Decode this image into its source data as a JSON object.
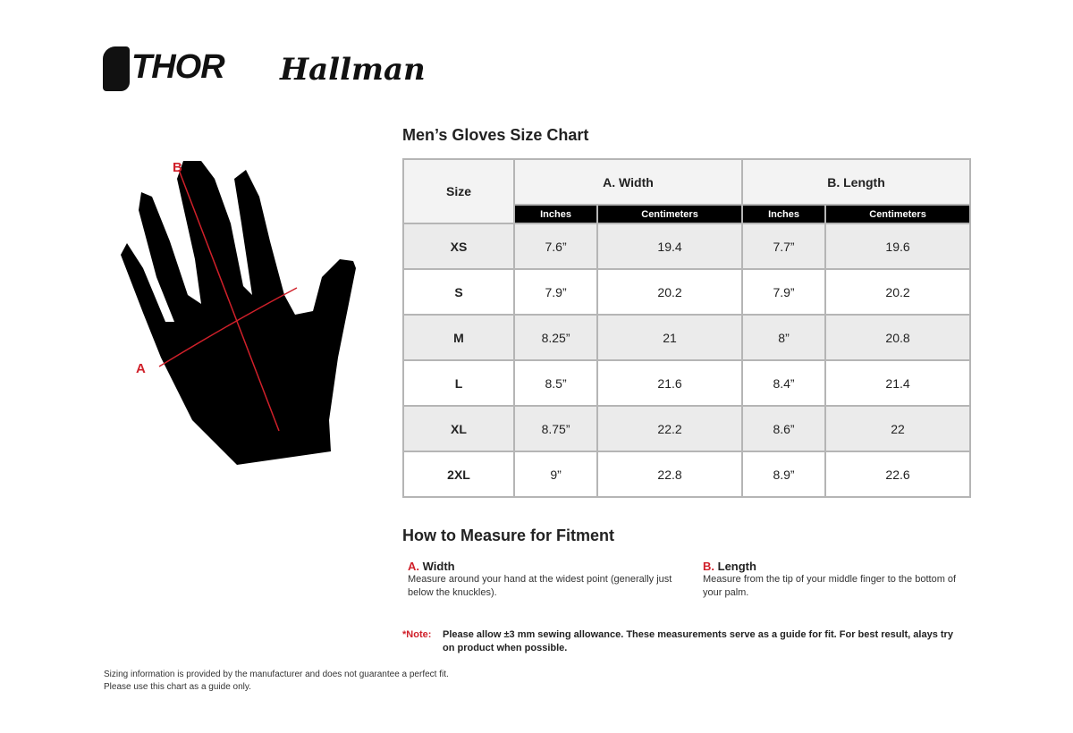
{
  "logos": {
    "thor": "THOR",
    "hallman": "Hallman"
  },
  "chart_title": "Men’s Gloves Size Chart",
  "table": {
    "size_header": "Size",
    "group_headers": [
      "A. Width",
      "B. Length"
    ],
    "unit_headers": [
      "Inches",
      "Centimeters",
      "Inches",
      "Centimeters"
    ],
    "rows": [
      [
        "XS",
        "7.6”",
        "19.4",
        "7.7”",
        "19.6"
      ],
      [
        "S",
        "7.9”",
        "20.2",
        "7.9”",
        "20.2"
      ],
      [
        "M",
        "8.25”",
        "21",
        "8”",
        "20.8"
      ],
      [
        "L",
        "8.5”",
        "21.6",
        "8.4”",
        "21.4"
      ],
      [
        "XL",
        "8.75”",
        "22.2",
        "8.6”",
        "22"
      ],
      [
        "2XL",
        "9”",
        "22.8",
        "8.9”",
        "22.6"
      ]
    ]
  },
  "diagram": {
    "label_a": "A",
    "label_b": "B",
    "arrow_color": "#d0202a"
  },
  "howto": {
    "title": "How to Measure for Fitment",
    "width": {
      "letter": "A.",
      "label": "Width",
      "text": "Measure around your hand at the widest point (generally just below the knuckles)."
    },
    "length": {
      "letter": "B.",
      "label": "Length",
      "text": "Measure from the tip of your middle finger to the bottom of your palm."
    }
  },
  "note": {
    "label": "*Note:",
    "text": "Please allow ±3 mm sewing allowance. These measurements serve as a guide for fit. For best result, alays try on product when possible."
  },
  "footer": {
    "line1": "Sizing information is provided by the manufacturer and does not guarantee a perfect fit.",
    "line2": "Please use this chart as a guide only."
  }
}
